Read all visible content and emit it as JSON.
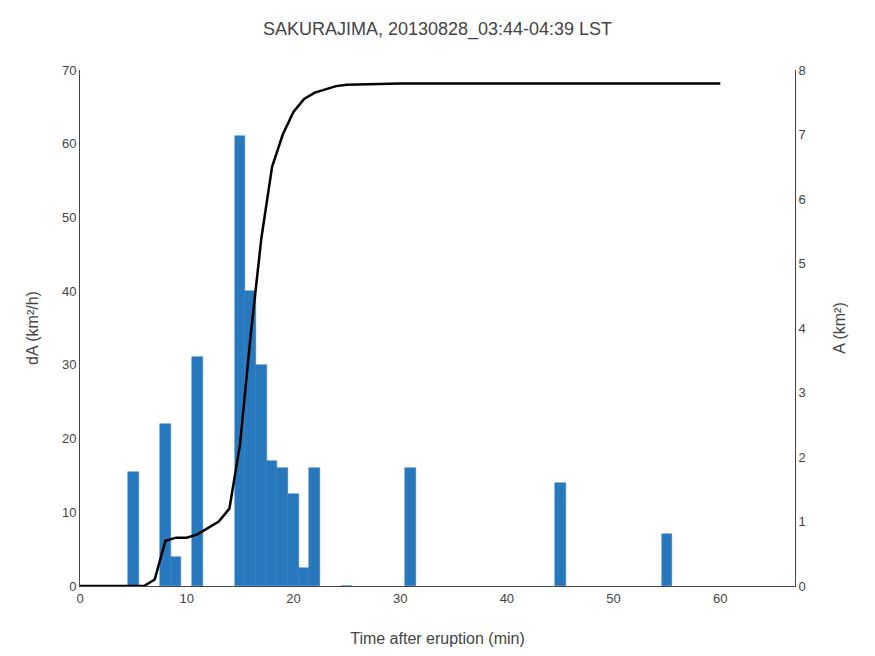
{
  "chart_data": {
    "type": "bar",
    "title": "SAKURAJIMA, 20130828_03:44-04:39 LST",
    "x_label": "Time after eruption (min)",
    "y_label": "dA (km²/h)",
    "y2_label": "A (km²)",
    "series": [
      {
        "type": "bar",
        "color": "#2878BE",
        "x": [
          5,
          8,
          9,
          11,
          15,
          16,
          17,
          18,
          19,
          20,
          21,
          22,
          25,
          31,
          45,
          55
        ],
        "values": [
          15.5,
          22,
          4,
          31,
          61,
          40,
          30,
          17,
          16,
          12.5,
          2.5,
          16,
          0,
          16,
          14,
          7
        ]
      },
      {
        "type": "line",
        "axis": "y2",
        "color": "#000000",
        "x": [
          0,
          4,
          5,
          6,
          7,
          8,
          9,
          10,
          11,
          12,
          13,
          14,
          15,
          16,
          17,
          18,
          19,
          20,
          21,
          22,
          23,
          24,
          25,
          27,
          30,
          35,
          40,
          45,
          50,
          55,
          60
        ],
        "values": [
          0,
          0,
          0,
          0,
          0.1,
          0.7,
          0.75,
          0.75,
          0.8,
          0.9,
          1.0,
          1.2,
          2.2,
          3.9,
          5.4,
          6.5,
          7.0,
          7.35,
          7.55,
          7.65,
          7.7,
          7.75,
          7.77,
          7.78,
          7.79,
          7.79,
          7.79,
          7.79,
          7.79,
          7.79,
          7.79
        ]
      }
    ],
    "xlim": [
      0,
      67
    ],
    "xticks": [
      0,
      10,
      20,
      30,
      40,
      50,
      60
    ],
    "ylim": [
      0,
      70
    ],
    "yticks": [
      0,
      10,
      20,
      30,
      40,
      50,
      60,
      70
    ],
    "y2lim": [
      0,
      8
    ],
    "y2ticks": [
      0,
      1,
      2,
      3,
      4,
      5,
      6,
      7,
      8
    ],
    "grid": false
  }
}
